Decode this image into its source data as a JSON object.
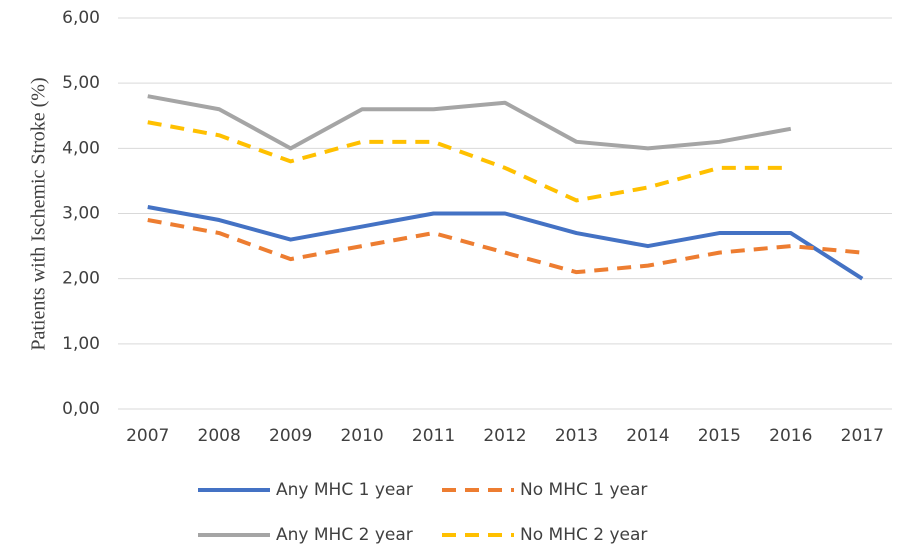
{
  "chart_data": {
    "type": "line",
    "y_label": "Patients with Ischemic Stroke (%)",
    "categories": [
      "2007",
      "2008",
      "2009",
      "2010",
      "2011",
      "2012",
      "2013",
      "2014",
      "2015",
      "2016",
      "2017"
    ],
    "series": [
      {
        "name": "Any MHC 1 year",
        "color": "#4472c4",
        "dash": false,
        "values": [
          3.1,
          2.9,
          2.6,
          2.8,
          3.0,
          3.0,
          2.7,
          2.5,
          2.7,
          2.7,
          2.0
        ]
      },
      {
        "name": "No MHC 1 year",
        "color": "#ed7d31",
        "dash": true,
        "values": [
          2.9,
          2.7,
          2.3,
          2.5,
          2.7,
          2.4,
          2.1,
          2.2,
          2.4,
          2.5,
          2.4
        ]
      },
      {
        "name": "Any MHC 2 year",
        "color": "#a5a5a5",
        "dash": false,
        "values": [
          4.8,
          4.6,
          4.0,
          4.6,
          4.6,
          4.7,
          4.1,
          4.0,
          4.1,
          4.3,
          null
        ]
      },
      {
        "name": "No MHC 2 year",
        "color": "#ffc000",
        "dash": true,
        "values": [
          4.4,
          4.2,
          3.8,
          4.1,
          4.1,
          3.7,
          3.2,
          3.4,
          3.7,
          3.7,
          null
        ]
      }
    ],
    "ylim": [
      0,
      6
    ],
    "yticks": [
      {
        "value": 0,
        "label": "0,00"
      },
      {
        "value": 1,
        "label": "1,00"
      },
      {
        "value": 2,
        "label": "2,00"
      },
      {
        "value": 3,
        "label": "3,00"
      },
      {
        "value": 4,
        "label": "4,00"
      },
      {
        "value": 5,
        "label": "5,00"
      },
      {
        "value": 6,
        "label": "6,00"
      }
    ],
    "grid": true
  }
}
